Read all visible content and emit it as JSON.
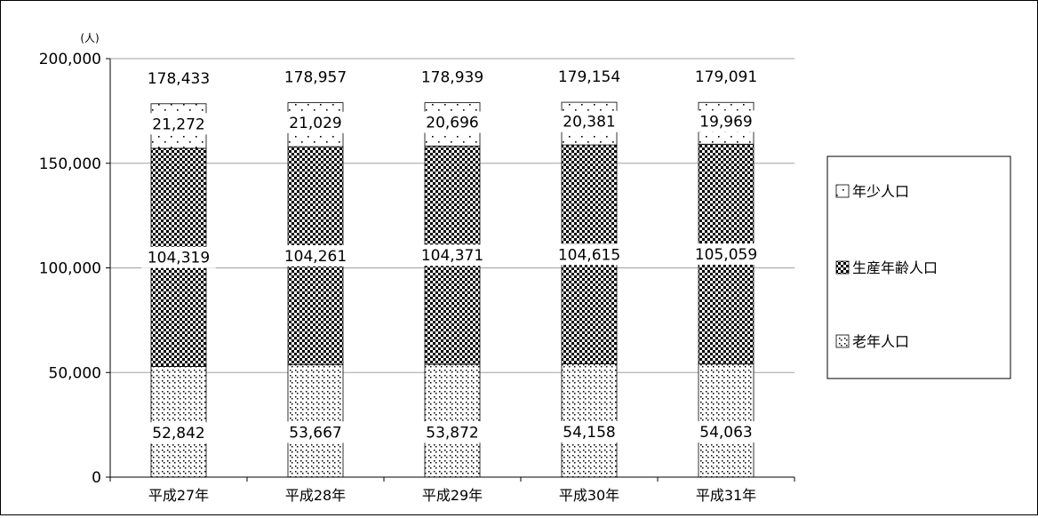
{
  "chart_data": {
    "type": "bar",
    "stacked": true,
    "y_unit": "(人)",
    "ylim": [
      0,
      200000
    ],
    "y_ticks": [
      "0",
      "50,000",
      "100,000",
      "150,000",
      "200,000"
    ],
    "y_tick_values": [
      0,
      50000,
      100000,
      150000,
      200000
    ],
    "grid": true,
    "legend_position": "right",
    "categories": [
      "平成27年",
      "平成28年",
      "平成29年",
      "平成30年",
      "平成31年"
    ],
    "series": [
      {
        "name": "老年人口",
        "values": [
          52842,
          53667,
          53872,
          54158,
          54063
        ],
        "labels": [
          "52,842",
          "53,667",
          "53,872",
          "54,158",
          "54,063"
        ],
        "pattern": "sparse-cross",
        "color": "#000000"
      },
      {
        "name": "生産年齢人口",
        "values": [
          104319,
          104261,
          104371,
          104615,
          105059
        ],
        "labels": [
          "104,319",
          "104,261",
          "104,371",
          "104,615",
          "105,059"
        ],
        "pattern": "checker",
        "color": "#000000"
      },
      {
        "name": "年少人口",
        "values": [
          21272,
          21029,
          20696,
          20381,
          19969
        ],
        "labels": [
          "21,272",
          "21,029",
          "20,696",
          "20,381",
          "19,969"
        ],
        "pattern": "dots",
        "color": "#000000"
      }
    ],
    "totals": [
      "178,433",
      "178,957",
      "178,939",
      "179,154",
      "179,091"
    ],
    "legend": [
      "年少人口",
      "生産年齢人口",
      "老年人口"
    ],
    "gridline_color": "#a0a0a0"
  }
}
